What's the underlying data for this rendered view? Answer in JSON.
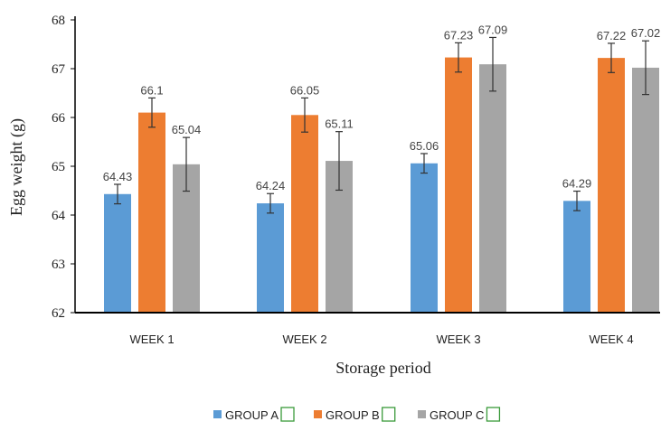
{
  "chart_data": {
    "type": "bar",
    "title": "",
    "xlabel": "Storage period",
    "ylabel": "Egg weight (g)",
    "ylim": [
      62,
      68
    ],
    "yticks": [
      62,
      63,
      64,
      65,
      66,
      67,
      68
    ],
    "categories": [
      "WEEK 1",
      "WEEK 2",
      "WEEK 3",
      "WEEK 4"
    ],
    "series": [
      {
        "name": "GROUP A",
        "color": "#5b9bd5",
        "values": [
          64.43,
          64.24,
          65.06,
          64.29
        ],
        "labels": [
          "64.43",
          "64.24",
          "65.06",
          "64.29"
        ],
        "errors": [
          0.2,
          0.2,
          0.2,
          0.2
        ]
      },
      {
        "name": "GROUP B",
        "color": "#ed7d31",
        "values": [
          66.1,
          66.05,
          67.23,
          67.22
        ],
        "labels": [
          "66.1",
          "66.05",
          "67.23",
          "67.22"
        ],
        "errors": [
          0.3,
          0.35,
          0.3,
          0.3
        ]
      },
      {
        "name": "GROUP C",
        "color": "#a5a5a5",
        "values": [
          65.04,
          65.11,
          67.09,
          67.02
        ],
        "labels": [
          "65.04",
          "65.11",
          "67.09",
          "67.02"
        ],
        "errors": [
          0.55,
          0.6,
          0.55,
          0.55
        ]
      }
    ],
    "grid": false,
    "legend_position": "bottom"
  }
}
